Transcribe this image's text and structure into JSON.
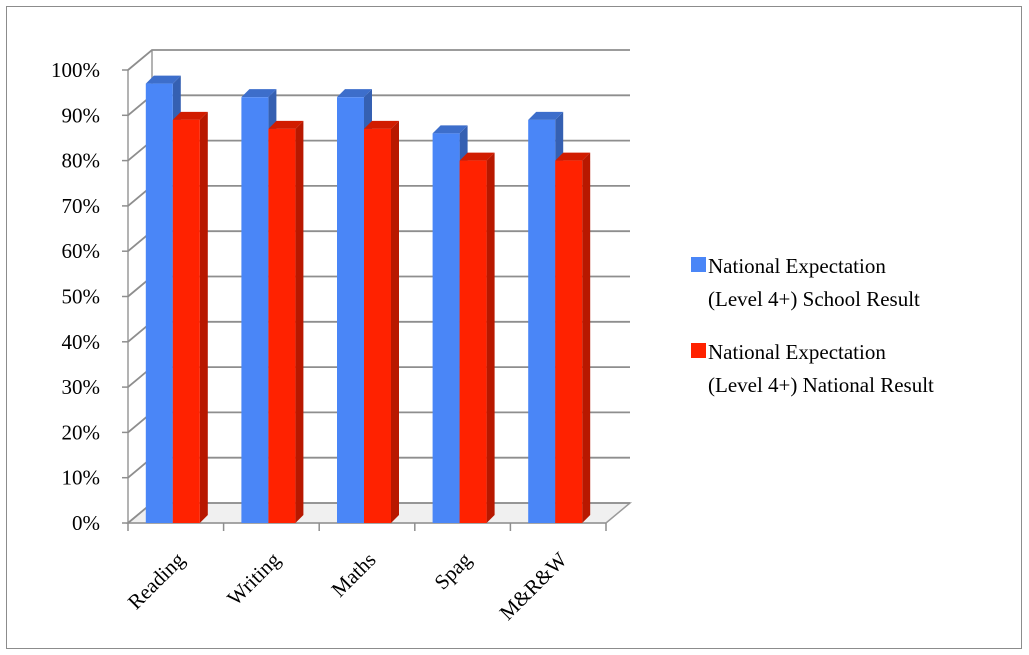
{
  "chart_data": {
    "type": "bar",
    "categories": [
      "Reading",
      "Writing",
      "Maths",
      "Spag",
      "M&R&W"
    ],
    "series": [
      {
        "name": "National Expectation (Level 4+) School Result",
        "legend_lines": [
          "National Expectation",
          "(Level 4+) School Result"
        ],
        "values": [
          97,
          94,
          94,
          86,
          89
        ],
        "color": "#4a86f7"
      },
      {
        "name": "National Expectation (Level 4+) National Result",
        "legend_lines": [
          "National Expectation",
          "(Level 4+) National Result"
        ],
        "values": [
          89,
          87,
          87,
          80,
          80
        ],
        "color": "#ff2200"
      }
    ],
    "yticks": [
      "0%",
      "10%",
      "20%",
      "30%",
      "40%",
      "50%",
      "60%",
      "70%",
      "80%",
      "90%",
      "100%"
    ],
    "ylim": [
      0,
      100
    ],
    "grid": true,
    "legend_position": "right",
    "title": "",
    "xlabel": "",
    "ylabel": ""
  }
}
